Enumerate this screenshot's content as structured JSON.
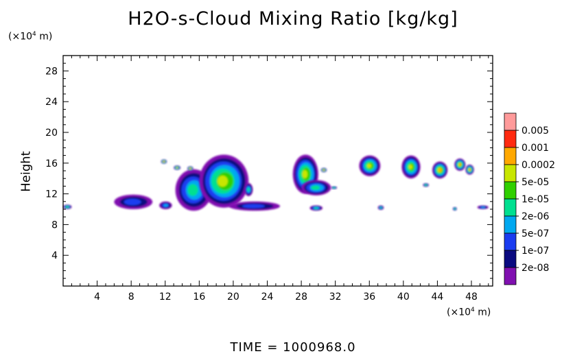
{
  "chart_data": {
    "type": "heatmap",
    "title": "H2O-s-Cloud Mixing Ratio [kg/kg]",
    "ylabel": "Height",
    "xlabel": "",
    "x_unit": "(×10⁴ m)",
    "y_unit": "(×10⁴ m)",
    "x_ticks": [
      "4",
      "8",
      "12",
      "16",
      "20",
      "24",
      "28",
      "32",
      "36",
      "40",
      "44",
      "48"
    ],
    "y_ticks": [
      "4",
      "8",
      "12",
      "16",
      "20",
      "24",
      "28"
    ],
    "xlim": [
      0,
      50.5
    ],
    "ylim": [
      0,
      30
    ],
    "colorbar": {
      "labels": [
        "0.005",
        "0.001",
        "0.0002",
        "5e-05",
        "1e-05",
        "2e-06",
        "5e-07",
        "1e-07",
        "2e-08"
      ],
      "colors": [
        "#ff9a9a",
        "#ff2a10",
        "#ffa800",
        "#c8e600",
        "#30d000",
        "#00e090",
        "#00a8f0",
        "#1a3cf0",
        "#0a0a80",
        "#8010b0"
      ]
    },
    "cloud_regions": [
      {
        "x": [
          -0.5,
          1.0
        ],
        "y": [
          10.0,
          10.6
        ],
        "level": 5
      },
      {
        "x": [
          6.0,
          10.5
        ],
        "y": [
          10.0,
          11.9
        ],
        "level": 2
      },
      {
        "x": [
          11.3,
          12.8
        ],
        "y": [
          10.0,
          11.0
        ],
        "level": 3
      },
      {
        "x": [
          13.2,
          17.5
        ],
        "y": [
          9.8,
          15.2
        ],
        "level": 4
      },
      {
        "x": [
          16.0,
          21.8
        ],
        "y": [
          10.2,
          17.1
        ],
        "level": 6
      },
      {
        "x": [
          11.5,
          12.2
        ],
        "y": [
          15.9,
          16.5
        ],
        "level": 8
      },
      {
        "x": [
          13.0,
          13.8
        ],
        "y": [
          15.1,
          15.7
        ],
        "level": 7
      },
      {
        "x": [
          14.6,
          15.3
        ],
        "y": [
          15.0,
          15.6
        ],
        "level": 8
      },
      {
        "x": [
          21.3,
          22.3
        ],
        "y": [
          11.7,
          13.4
        ],
        "level": 4
      },
      {
        "x": [
          19.5,
          25.5
        ],
        "y": [
          9.8,
          11.0
        ],
        "level": 2
      },
      {
        "x": [
          27.0,
          30.0
        ],
        "y": [
          12.0,
          17.1
        ],
        "level": 6
      },
      {
        "x": [
          28.0,
          31.5
        ],
        "y": [
          11.8,
          13.8
        ],
        "level": 4
      },
      {
        "x": [
          29.0,
          30.5
        ],
        "y": [
          9.8,
          10.5
        ],
        "level": 4
      },
      {
        "x": [
          31.5,
          32.2
        ],
        "y": [
          12.6,
          13.0
        ],
        "level": 5
      },
      {
        "x": [
          30.3,
          31.0
        ],
        "y": [
          14.8,
          15.4
        ],
        "level": 8
      },
      {
        "x": [
          34.8,
          37.3
        ],
        "y": [
          14.3,
          17.0
        ],
        "level": 6
      },
      {
        "x": [
          37.0,
          37.7
        ],
        "y": [
          9.9,
          10.5
        ],
        "level": 4
      },
      {
        "x": [
          39.8,
          42.0
        ],
        "y": [
          14.0,
          17.0
        ],
        "level": 6
      },
      {
        "x": [
          42.3,
          43.0
        ],
        "y": [
          12.9,
          13.4
        ],
        "level": 5
      },
      {
        "x": [
          43.4,
          45.2
        ],
        "y": [
          14.0,
          16.2
        ],
        "level": 7
      },
      {
        "x": [
          46.0,
          47.3
        ],
        "y": [
          15.0,
          16.6
        ],
        "level": 7
      },
      {
        "x": [
          47.3,
          48.3
        ],
        "y": [
          14.5,
          15.8
        ],
        "level": 7
      },
      {
        "x": [
          45.8,
          46.3
        ],
        "y": [
          9.8,
          10.3
        ],
        "level": 5
      },
      {
        "x": [
          48.7,
          50.0
        ],
        "y": [
          10.0,
          10.5
        ],
        "level": 3
      }
    ],
    "grid": false,
    "legend": "right"
  },
  "time_label": "TIME = 1000968.0"
}
